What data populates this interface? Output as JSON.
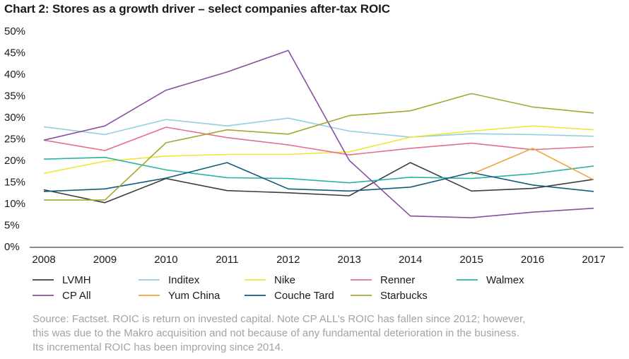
{
  "chart_data": {
    "type": "line",
    "title": "Chart 2: Stores as a growth driver – select companies after-tax ROIC",
    "xlabel": "",
    "ylabel": "",
    "x": [
      "2008",
      "2009",
      "2010",
      "2011",
      "2012",
      "2013",
      "2014",
      "2015",
      "2016",
      "2017"
    ],
    "y_ticks": [
      "0%",
      "5%",
      "10%",
      "15%",
      "20%",
      "25%",
      "30%",
      "35%",
      "40%",
      "45%",
      "50%"
    ],
    "ylim": [
      0,
      50
    ],
    "grid": false,
    "legend_position": "bottom",
    "series": [
      {
        "name": "LVMH",
        "color": "#3d3d3d",
        "values": [
          13.2,
          10.2,
          15.8,
          13.0,
          12.5,
          11.8,
          19.5,
          12.9,
          13.5,
          15.6
        ]
      },
      {
        "name": "Inditex",
        "color": "#8fd0de",
        "values": [
          27.8,
          26.0,
          29.5,
          28.0,
          29.8,
          26.8,
          25.4,
          26.2,
          26.0,
          25.6
        ]
      },
      {
        "name": "Nike",
        "color": "#f2e43b",
        "values": [
          17.0,
          19.8,
          21.0,
          21.4,
          21.4,
          22.0,
          25.4,
          26.8,
          28.0,
          27.1
        ]
      },
      {
        "name": "Renner",
        "color": "#e56e8c",
        "values": [
          24.7,
          22.3,
          27.7,
          25.3,
          23.6,
          21.3,
          22.8,
          24.0,
          22.5,
          23.2
        ]
      },
      {
        "name": "Walmex",
        "color": "#2bb3a3",
        "values": [
          20.3,
          20.7,
          17.8,
          16.0,
          15.8,
          14.8,
          16.1,
          15.8,
          16.9,
          18.7
        ]
      },
      {
        "name": "CP All",
        "color": "#8a4ea2",
        "values": [
          24.7,
          28.0,
          36.3,
          40.5,
          45.5,
          20.0,
          7.1,
          6.7,
          8.0,
          8.9
        ]
      },
      {
        "name": "Yum China",
        "color": "#f2a23a",
        "values": [
          null,
          null,
          null,
          null,
          null,
          null,
          null,
          16.8,
          22.8,
          15.5
        ]
      },
      {
        "name": "Couche Tard",
        "color": "#155a7d",
        "values": [
          12.8,
          13.4,
          15.9,
          19.5,
          13.4,
          12.9,
          13.8,
          17.2,
          14.3,
          12.8
        ]
      },
      {
        "name": "Starbucks",
        "color": "#a8a632",
        "values": [
          10.8,
          10.8,
          24.1,
          27.1,
          26.1,
          30.4,
          31.5,
          35.5,
          32.4,
          31.0
        ]
      }
    ]
  },
  "source_lines": [
    "Source: Factset. ROIC is return on invested capital. Note CP ALL’s ROIC has fallen since 2012; however,",
    "this was due to the Makro acquisition and not because of any fundamental deterioration in the business.",
    "Its incremental ROIC has been improving since 2014."
  ]
}
